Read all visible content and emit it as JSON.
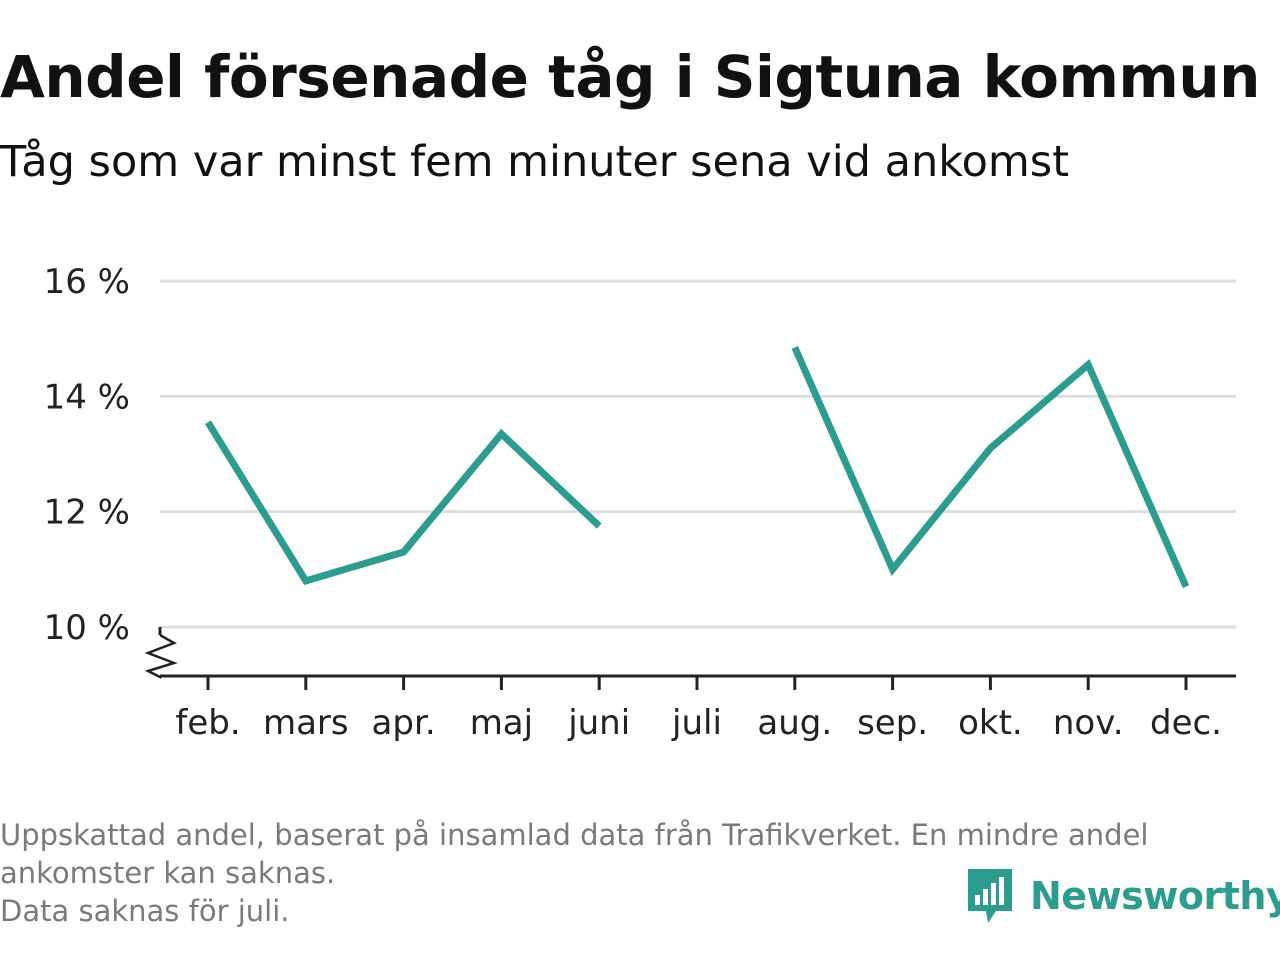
{
  "header": {
    "title": "Andel försenade tåg i Sigtuna kommun",
    "subtitle": "Tåg som var minst fem minuter sena vid ankomst"
  },
  "chart_data": {
    "type": "line",
    "title": "Andel försenade tåg i Sigtuna kommun",
    "subtitle": "Tåg som var minst fem minuter sena vid ankomst",
    "xlabel": "",
    "ylabel": "",
    "categories": [
      "feb.",
      "mars",
      "apr.",
      "maj",
      "juni",
      "juli",
      "aug.",
      "sep.",
      "okt.",
      "nov.",
      "dec."
    ],
    "series": [
      {
        "values": [
          13.55,
          10.8,
          11.3,
          13.35,
          11.75,
          null,
          14.85,
          11.0,
          13.1,
          14.55,
          10.7
        ],
        "color": "#2a9d8f"
      }
    ],
    "yticks": [
      10,
      12,
      14,
      16
    ],
    "ytick_labels": [
      "10 %",
      "12 %",
      "14 %",
      "16 %"
    ],
    "ylim": [
      9.15,
      16.4
    ],
    "y_axis_break": true,
    "grid": true,
    "legend": "none"
  },
  "footnote": {
    "line1": "Uppskattad andel, baserat på insamlad data från Trafikverket. En mindre andel",
    "line2": "ankomster kan saknas.",
    "line3": "Data saknas för juli."
  },
  "logo": {
    "text": "Newsworthy",
    "icon": "newsworthy-logo-icon",
    "color": "#2a9d8f"
  },
  "colors": {
    "grid": "#dddddd",
    "axis": "#222222",
    "line": "#2a9d8f"
  }
}
